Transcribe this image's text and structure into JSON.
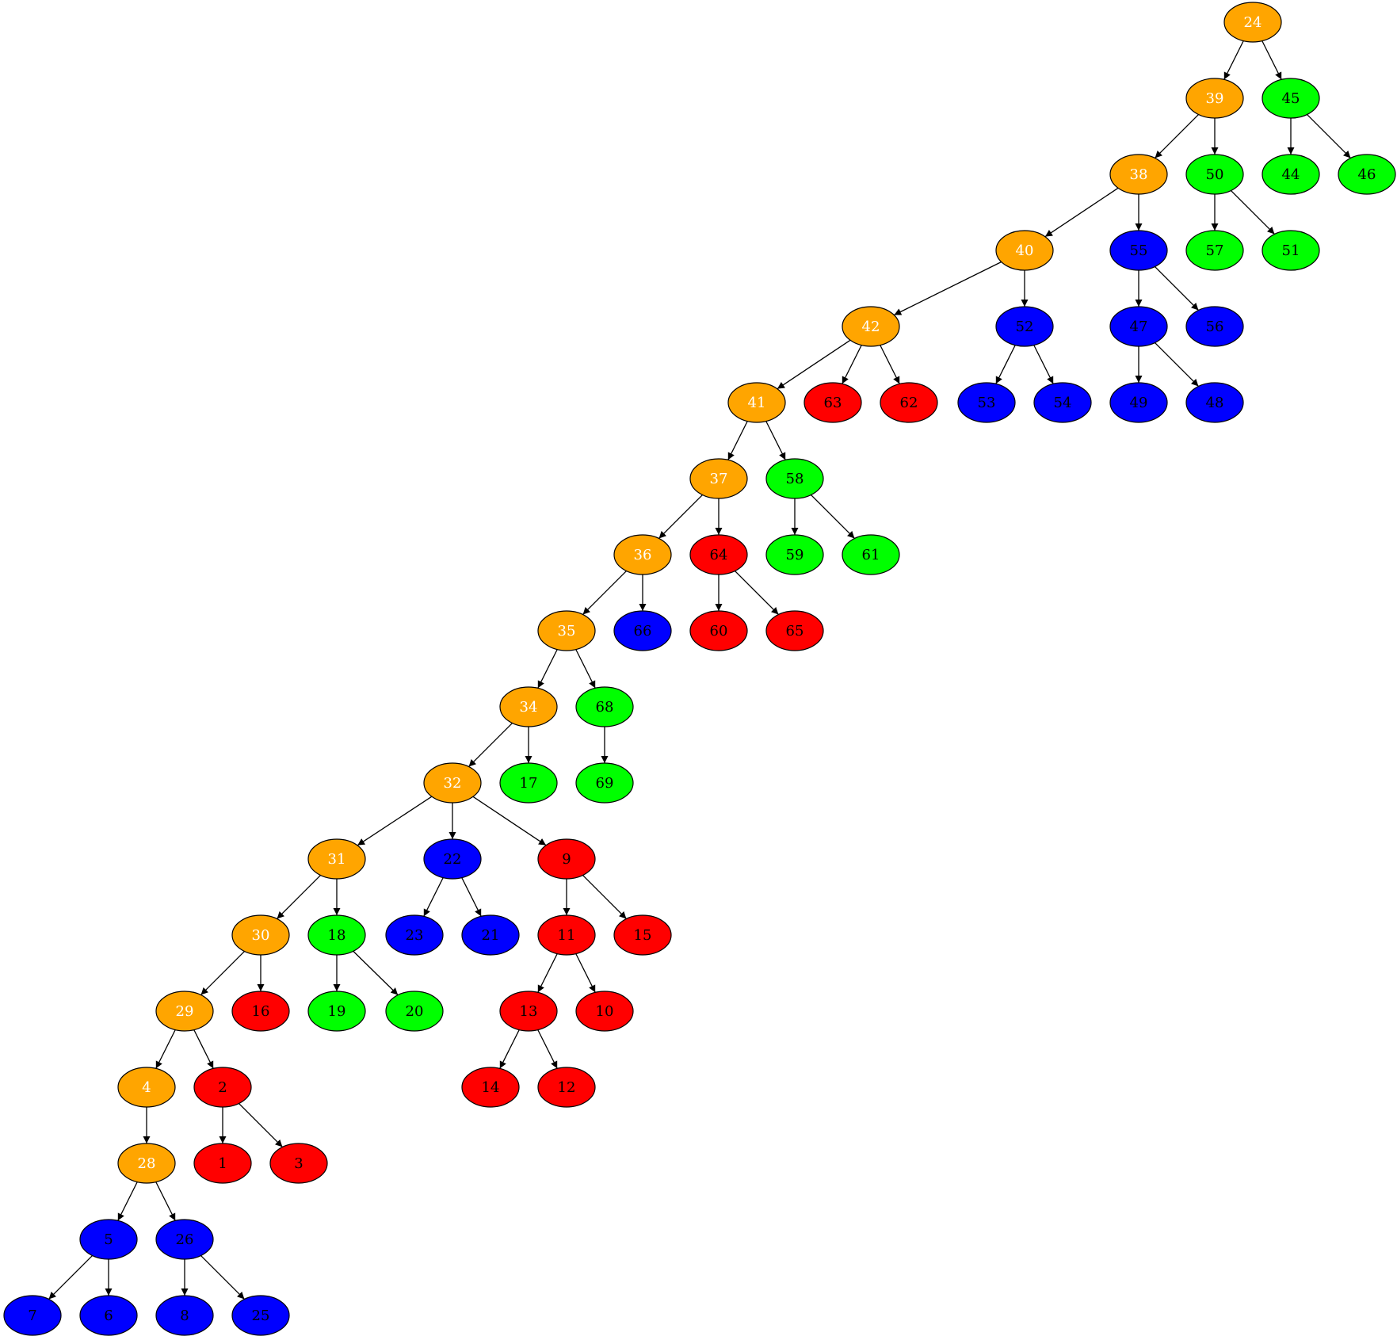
{
  "colors": {
    "orange": "#ffa500",
    "green": "#00ff00",
    "blue": "#0000ff",
    "red": "#ff0000",
    "stroke": "#000000",
    "label_dark": "#000000",
    "label_light": "#ffffff"
  },
  "nodes": [
    {
      "id": "24",
      "label": "24",
      "color": "orange"
    },
    {
      "id": "39",
      "label": "39",
      "color": "orange"
    },
    {
      "id": "45",
      "label": "45",
      "color": "green"
    },
    {
      "id": "38",
      "label": "38",
      "color": "orange"
    },
    {
      "id": "50",
      "label": "50",
      "color": "green"
    },
    {
      "id": "44",
      "label": "44",
      "color": "green"
    },
    {
      "id": "46",
      "label": "46",
      "color": "green"
    },
    {
      "id": "40",
      "label": "40",
      "color": "orange"
    },
    {
      "id": "55",
      "label": "55",
      "color": "blue"
    },
    {
      "id": "57",
      "label": "57",
      "color": "green"
    },
    {
      "id": "51",
      "label": "51",
      "color": "green"
    },
    {
      "id": "42",
      "label": "42",
      "color": "orange"
    },
    {
      "id": "52",
      "label": "52",
      "color": "blue"
    },
    {
      "id": "47",
      "label": "47",
      "color": "blue"
    },
    {
      "id": "56",
      "label": "56",
      "color": "blue"
    },
    {
      "id": "41",
      "label": "41",
      "color": "orange"
    },
    {
      "id": "63",
      "label": "63",
      "color": "red"
    },
    {
      "id": "62",
      "label": "62",
      "color": "red"
    },
    {
      "id": "53",
      "label": "53",
      "color": "blue"
    },
    {
      "id": "54",
      "label": "54",
      "color": "blue"
    },
    {
      "id": "49",
      "label": "49",
      "color": "blue"
    },
    {
      "id": "48",
      "label": "48",
      "color": "blue"
    },
    {
      "id": "37",
      "label": "37",
      "color": "orange"
    },
    {
      "id": "58",
      "label": "58",
      "color": "green"
    },
    {
      "id": "36",
      "label": "36",
      "color": "orange"
    },
    {
      "id": "64",
      "label": "64",
      "color": "red"
    },
    {
      "id": "59",
      "label": "59",
      "color": "green"
    },
    {
      "id": "61",
      "label": "61",
      "color": "green"
    },
    {
      "id": "35",
      "label": "35",
      "color": "orange"
    },
    {
      "id": "66",
      "label": "66",
      "color": "blue"
    },
    {
      "id": "60",
      "label": "60",
      "color": "red"
    },
    {
      "id": "65",
      "label": "65",
      "color": "red"
    },
    {
      "id": "34",
      "label": "34",
      "color": "orange"
    },
    {
      "id": "68",
      "label": "68",
      "color": "green"
    },
    {
      "id": "32",
      "label": "32",
      "color": "orange"
    },
    {
      "id": "17",
      "label": "17",
      "color": "green"
    },
    {
      "id": "69",
      "label": "69",
      "color": "green"
    },
    {
      "id": "31",
      "label": "31",
      "color": "orange"
    },
    {
      "id": "22",
      "label": "22",
      "color": "blue"
    },
    {
      "id": "9",
      "label": "9",
      "color": "red"
    },
    {
      "id": "30",
      "label": "30",
      "color": "orange"
    },
    {
      "id": "18",
      "label": "18",
      "color": "green"
    },
    {
      "id": "23",
      "label": "23",
      "color": "blue"
    },
    {
      "id": "21",
      "label": "21",
      "color": "blue"
    },
    {
      "id": "11",
      "label": "11",
      "color": "red"
    },
    {
      "id": "15",
      "label": "15",
      "color": "red"
    },
    {
      "id": "29",
      "label": "29",
      "color": "orange"
    },
    {
      "id": "16",
      "label": "16",
      "color": "red"
    },
    {
      "id": "19",
      "label": "19",
      "color": "green"
    },
    {
      "id": "20",
      "label": "20",
      "color": "green"
    },
    {
      "id": "13",
      "label": "13",
      "color": "red"
    },
    {
      "id": "10",
      "label": "10",
      "color": "red"
    },
    {
      "id": "4",
      "label": "4",
      "color": "orange"
    },
    {
      "id": "2",
      "label": "2",
      "color": "red"
    },
    {
      "id": "14",
      "label": "14",
      "color": "red"
    },
    {
      "id": "12",
      "label": "12",
      "color": "red"
    },
    {
      "id": "28",
      "label": "28",
      "color": "orange"
    },
    {
      "id": "1",
      "label": "1",
      "color": "red"
    },
    {
      "id": "3",
      "label": "3",
      "color": "red"
    },
    {
      "id": "5",
      "label": "5",
      "color": "blue"
    },
    {
      "id": "26",
      "label": "26",
      "color": "blue"
    },
    {
      "id": "7",
      "label": "7",
      "color": "blue"
    },
    {
      "id": "6",
      "label": "6",
      "color": "blue"
    },
    {
      "id": "8",
      "label": "8",
      "color": "blue"
    },
    {
      "id": "25",
      "label": "25",
      "color": "blue"
    }
  ],
  "edges": [
    [
      "24",
      "39"
    ],
    [
      "24",
      "45"
    ],
    [
      "39",
      "38"
    ],
    [
      "39",
      "50"
    ],
    [
      "45",
      "44"
    ],
    [
      "45",
      "46"
    ],
    [
      "38",
      "40"
    ],
    [
      "38",
      "55"
    ],
    [
      "50",
      "57"
    ],
    [
      "50",
      "51"
    ],
    [
      "40",
      "42"
    ],
    [
      "40",
      "52"
    ],
    [
      "55",
      "47"
    ],
    [
      "55",
      "56"
    ],
    [
      "42",
      "41"
    ],
    [
      "42",
      "63"
    ],
    [
      "42",
      "62"
    ],
    [
      "52",
      "53"
    ],
    [
      "52",
      "54"
    ],
    [
      "47",
      "49"
    ],
    [
      "47",
      "48"
    ],
    [
      "41",
      "37"
    ],
    [
      "41",
      "58"
    ],
    [
      "37",
      "36"
    ],
    [
      "37",
      "64"
    ],
    [
      "58",
      "59"
    ],
    [
      "58",
      "61"
    ],
    [
      "36",
      "35"
    ],
    [
      "36",
      "66"
    ],
    [
      "64",
      "60"
    ],
    [
      "64",
      "65"
    ],
    [
      "35",
      "34"
    ],
    [
      "35",
      "68"
    ],
    [
      "34",
      "32"
    ],
    [
      "34",
      "17"
    ],
    [
      "68",
      "69"
    ],
    [
      "32",
      "31"
    ],
    [
      "32",
      "22"
    ],
    [
      "32",
      "9"
    ],
    [
      "31",
      "30"
    ],
    [
      "31",
      "18"
    ],
    [
      "22",
      "23"
    ],
    [
      "22",
      "21"
    ],
    [
      "9",
      "11"
    ],
    [
      "9",
      "15"
    ],
    [
      "30",
      "29"
    ],
    [
      "30",
      "16"
    ],
    [
      "18",
      "19"
    ],
    [
      "18",
      "20"
    ],
    [
      "11",
      "13"
    ],
    [
      "11",
      "10"
    ],
    [
      "29",
      "4"
    ],
    [
      "29",
      "2"
    ],
    [
      "13",
      "14"
    ],
    [
      "13",
      "12"
    ],
    [
      "4",
      "28"
    ],
    [
      "2",
      "1"
    ],
    [
      "2",
      "3"
    ],
    [
      "28",
      "5"
    ],
    [
      "28",
      "26"
    ],
    [
      "5",
      "7"
    ],
    [
      "5",
      "6"
    ],
    [
      "26",
      "8"
    ],
    [
      "26",
      "25"
    ]
  ]
}
